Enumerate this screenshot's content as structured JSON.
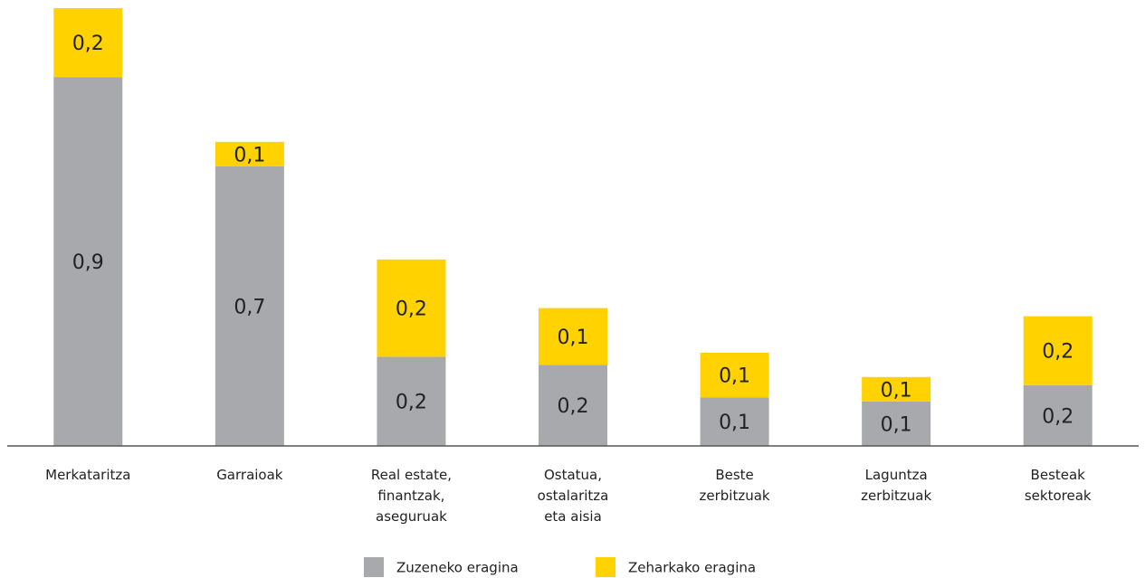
{
  "chart_data": {
    "type": "stacked_bar",
    "categories": [
      "Merkataritza",
      "Garraioak",
      "Real estate,\nfinantzak,\naseguruak",
      "Ostatua,\nostalaritza\neta aisia",
      "Beste\nzerbitzuak",
      "Laguntza\nzerbitzuak",
      "Besteak\nsektoreak"
    ],
    "series": [
      {
        "name": "Zuzeneko eragina",
        "color": "#a7a9ac",
        "values": [
          0.91,
          0.69,
          0.22,
          0.2,
          0.12,
          0.11,
          0.15
        ],
        "value_labels": [
          "0,9",
          "0,7",
          "0,2",
          "0,2",
          "0,1",
          "0,1",
          "0,2"
        ]
      },
      {
        "name": "Zeharkako eragina",
        "color": "#ffd200",
        "values": [
          0.17,
          0.06,
          0.24,
          0.14,
          0.11,
          0.06,
          0.17
        ],
        "value_labels": [
          "0,2",
          "0,1",
          "0,2",
          "0,1",
          "0,1",
          "0,1",
          "0,2"
        ]
      }
    ],
    "ylim": [
      0,
      1.1
    ]
  }
}
